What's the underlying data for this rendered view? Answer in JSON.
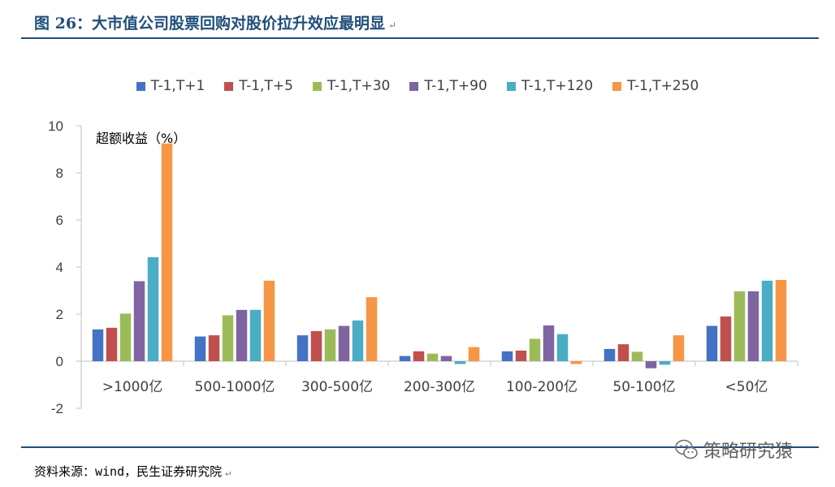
{
  "header": {
    "title": "图 26：大市值公司股票回购对股价拉升效应最明显",
    "para_mark": "↵"
  },
  "chart_data": {
    "type": "bar",
    "ylabel": "超额收益（%）",
    "ylim": [
      -2,
      10
    ],
    "yticks": [
      -2,
      0,
      2,
      4,
      6,
      8,
      10
    ],
    "legend_position": "top",
    "grid": false,
    "categories": [
      ">1000亿",
      "500-1000亿",
      "300-500亿",
      "200-300亿",
      "100-200亿",
      "50-100亿",
      "<50亿"
    ],
    "series": [
      {
        "name": "T-1,T+1",
        "color": "#4472c4",
        "values": [
          1.35,
          1.05,
          1.1,
          0.22,
          0.42,
          0.52,
          1.5
        ]
      },
      {
        "name": "T-1,T+5",
        "color": "#c0504d",
        "values": [
          1.42,
          1.1,
          1.28,
          0.42,
          0.45,
          0.72,
          1.9
        ]
      },
      {
        "name": "T-1,T+30",
        "color": "#9bbb59",
        "values": [
          2.02,
          1.95,
          1.35,
          0.32,
          0.95,
          0.4,
          2.97
        ]
      },
      {
        "name": "T-1,T+90",
        "color": "#8064a2",
        "values": [
          3.4,
          2.18,
          1.5,
          0.22,
          1.52,
          -0.3,
          2.97
        ]
      },
      {
        "name": "T-1,T+120",
        "color": "#4bacc6",
        "values": [
          4.42,
          2.18,
          1.73,
          -0.12,
          1.15,
          -0.15,
          3.42
        ]
      },
      {
        "name": "T-1,T+250",
        "color": "#f79646",
        "values": [
          9.25,
          3.42,
          2.72,
          0.6,
          -0.12,
          1.1,
          3.45
        ]
      }
    ]
  },
  "footer": {
    "source": "资料来源：wind，民生证券研究院",
    "para_mark": "↵",
    "watermark": "策略研究猿",
    "watermark_icon": "wechat-icon"
  }
}
